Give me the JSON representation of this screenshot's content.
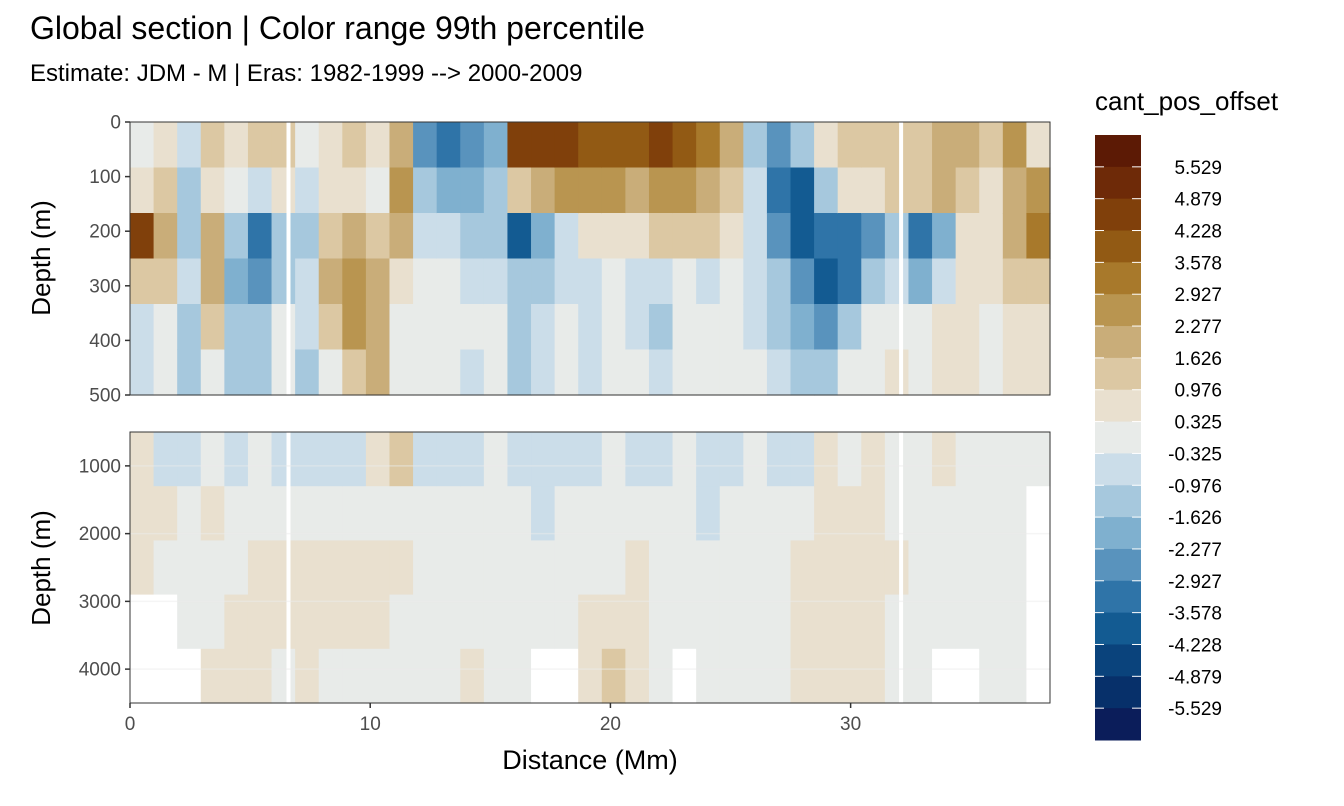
{
  "title": "Global section | Color range 99th percentile",
  "subtitle": "Estimate: JDM - M | Eras: 1982-1999 --> 2000-2009",
  "chart_data": {
    "type": "heatmap",
    "title": "Global section | Color range 99th percentile",
    "subtitle": "Estimate: JDM - M | Eras: 1982-1999 --> 2000-2009",
    "xlabel": "Distance (Mm)",
    "ylabel": "Depth (m)",
    "xlim": [
      0,
      38.3
    ],
    "x_ticks": [
      0,
      10,
      20,
      30
    ],
    "panels": [
      {
        "name": "upper",
        "ylim": [
          0,
          500
        ],
        "y_ticks": [
          0,
          100,
          200,
          300,
          400,
          500
        ]
      },
      {
        "name": "lower",
        "ylim": [
          500,
          4500
        ],
        "y_ticks": [
          1000,
          2000,
          3000,
          4000
        ]
      }
    ],
    "legend": {
      "title": "cant_pos_offset",
      "position": "right",
      "labels": [
        "5.529",
        "4.879",
        "4.228",
        "3.578",
        "2.927",
        "2.277",
        "1.626",
        "0.976",
        "0.325",
        "-0.325",
        "-0.976",
        "-1.626",
        "-2.277",
        "-2.927",
        "-3.578",
        "-4.228",
        "-4.879",
        "-5.529"
      ],
      "colors": [
        "#5c1a05",
        "#6e2a08",
        "#80400b",
        "#925a14",
        "#a8792b",
        "#b99550",
        "#c9ad79",
        "#dcc8a3",
        "#e9e0cf",
        "#e8ebe9",
        "#cbdde9",
        "#a6c8dd",
        "#7fb0cf",
        "#5993bd",
        "#2f74a8",
        "#135b92",
        "#0a437c",
        "#07306a",
        "#0b1d5a"
      ]
    },
    "upper_columns": [
      {
        "x": 0,
        "values": [
          -0.3,
          0.5,
          4.5,
          1.0,
          -0.5,
          -0.8
        ]
      },
      {
        "x": 1,
        "values": [
          0.9,
          1.4,
          2.0,
          1.0,
          0.3,
          -0.3
        ]
      },
      {
        "x": 2,
        "values": [
          -0.6,
          -1.5,
          -1.2,
          -0.8,
          -1.1,
          -1.3
        ]
      },
      {
        "x": 3,
        "values": [
          1.3,
          0.6,
          1.8,
          2.0,
          1.2,
          -0.3
        ]
      },
      {
        "x": 4,
        "values": [
          0.6,
          -0.3,
          -1.2,
          -1.7,
          -1.4,
          -1.2
        ]
      },
      {
        "x": 5,
        "values": [
          1.2,
          -0.8,
          -3.4,
          -2.6,
          -1.6,
          -1.4
        ]
      },
      {
        "x": 6,
        "values": [
          1.6,
          0.7,
          -1.5,
          -1.0,
          -0.3,
          -0.3
        ]
      },
      {
        "x": 7,
        "values": [
          -0.3,
          -0.8,
          -1.1,
          -0.7,
          -0.8,
          -1.0
        ]
      },
      {
        "x": 8,
        "values": [
          0.6,
          0.9,
          1.6,
          1.8,
          1.2,
          -0.3
        ]
      },
      {
        "x": 9,
        "values": [
          1.3,
          0.7,
          2.2,
          2.4,
          2.3,
          1.5
        ]
      },
      {
        "x": 10,
        "values": [
          0.4,
          0.2,
          1.0,
          1.9,
          2.2,
          2.0
        ]
      },
      {
        "x": 11,
        "values": [
          1.8,
          2.3,
          1.7,
          0.9,
          0.2,
          -0.3
        ]
      },
      {
        "x": 12,
        "values": [
          -2.4,
          -1.5,
          -0.6,
          -0.3,
          -0.3,
          -0.3
        ]
      },
      {
        "x": 13,
        "values": [
          -3.0,
          -1.9,
          -0.8,
          -0.3,
          -0.3,
          -0.3
        ]
      },
      {
        "x": 14,
        "values": [
          -2.7,
          -2.1,
          -1.0,
          -0.4,
          -0.3,
          -0.8
        ]
      },
      {
        "x": 15,
        "values": [
          -1.8,
          -1.6,
          -1.3,
          -0.5,
          -0.3,
          -0.3
        ]
      },
      {
        "x": 16,
        "values": [
          4.8,
          1.0,
          -3.7,
          -1.6,
          -1.3,
          -1.4
        ]
      },
      {
        "x": 17,
        "values": [
          4.3,
          2.0,
          -1.8,
          -1.0,
          -0.6,
          -0.8
        ]
      },
      {
        "x": 18,
        "values": [
          4.6,
          2.8,
          -0.6,
          -0.4,
          -0.3,
          -0.3
        ]
      },
      {
        "x": 19,
        "values": [
          4.0,
          2.6,
          0.4,
          -0.8,
          -0.9,
          -0.8
        ]
      },
      {
        "x": 20,
        "values": [
          4.2,
          2.3,
          0.8,
          -0.3,
          -0.3,
          -0.3
        ]
      },
      {
        "x": 21,
        "values": [
          3.9,
          1.9,
          0.5,
          -0.6,
          -0.4,
          -0.3
        ]
      },
      {
        "x": 22,
        "values": [
          4.3,
          2.4,
          1.1,
          -0.7,
          -1.1,
          -0.7
        ]
      },
      {
        "x": 23,
        "values": [
          3.8,
          2.7,
          1.0,
          0.3,
          -0.3,
          -0.3
        ]
      },
      {
        "x": 24,
        "values": [
          3.3,
          2.0,
          1.2,
          -0.4,
          -0.3,
          -0.3
        ]
      },
      {
        "x": 25,
        "values": [
          1.7,
          1.6,
          0.5,
          -0.3,
          -0.3,
          -0.3
        ]
      },
      {
        "x": 26,
        "values": [
          -1.1,
          -0.4,
          -0.7,
          -0.8,
          -0.5,
          -0.3
        ]
      },
      {
        "x": 27,
        "values": [
          -2.5,
          -3.0,
          -2.7,
          -1.6,
          -1.1,
          -0.8
        ]
      },
      {
        "x": 28,
        "values": [
          -1.5,
          -4.2,
          -3.8,
          -2.7,
          -2.1,
          -1.4
        ]
      },
      {
        "x": 29,
        "values": [
          0.8,
          -1.4,
          -3.5,
          -4.0,
          -2.6,
          -1.2
        ]
      },
      {
        "x": 30,
        "values": [
          1.2,
          0.6,
          -3.2,
          -3.3,
          -1.3,
          -0.3
        ]
      },
      {
        "x": 31,
        "values": [
          1.4,
          0.8,
          -2.6,
          -1.2,
          -0.3,
          -0.3
        ]
      },
      {
        "x": 32,
        "values": [
          1.0,
          1.2,
          -1.6,
          -0.4,
          0.3,
          0.5
        ]
      },
      {
        "x": 33,
        "values": [
          1.5,
          1.3,
          -3.0,
          -1.8,
          -0.3,
          0.3
        ]
      },
      {
        "x": 34,
        "values": [
          2.1,
          1.9,
          -1.8,
          -0.4,
          0.4,
          0.6
        ]
      },
      {
        "x": 35,
        "values": [
          2.0,
          1.4,
          0.4,
          0.5,
          0.7,
          0.6
        ]
      },
      {
        "x": 36,
        "values": [
          1.1,
          0.8,
          0.6,
          0.4,
          0.3,
          -0.3
        ]
      },
      {
        "x": 37,
        "values": [
          2.5,
          2.0,
          1.7,
          1.2,
          0.8,
          0.5
        ]
      },
      {
        "x": 38,
        "values": [
          0.6,
          2.8,
          3.4,
          1.3,
          0.7,
          0.4
        ]
      }
    ],
    "lower_columns": [
      {
        "x": 0,
        "values": [
          0.4,
          0.6,
          0.5,
          null,
          null
        ]
      },
      {
        "x": 1,
        "values": [
          -0.4,
          0.4,
          -0.2,
          null,
          null
        ]
      },
      {
        "x": 2,
        "values": [
          -0.4,
          -0.3,
          -0.2,
          -0.2,
          null
        ]
      },
      {
        "x": 3,
        "values": [
          0.3,
          0.4,
          -0.2,
          -0.2,
          0.4
        ]
      },
      {
        "x": 4,
        "values": [
          -0.4,
          -0.2,
          0.3,
          0.4,
          0.5
        ]
      },
      {
        "x": 5,
        "values": [
          0.3,
          -0.2,
          0.4,
          0.5,
          0.4
        ]
      },
      {
        "x": 6,
        "values": [
          -0.4,
          -0.2,
          0.5,
          0.6,
          0.3
        ]
      },
      {
        "x": 7,
        "values": [
          -0.4,
          -0.2,
          0.5,
          0.8,
          0.4
        ]
      },
      {
        "x": 8,
        "values": [
          -0.5,
          -0.3,
          0.4,
          0.6,
          0.3
        ]
      },
      {
        "x": 9,
        "values": [
          -0.4,
          -0.2,
          0.6,
          0.7,
          0.3
        ]
      },
      {
        "x": 10,
        "values": [
          0.4,
          -0.2,
          0.5,
          0.4,
          0.3
        ]
      },
      {
        "x": 11,
        "values": [
          1.0,
          -0.2,
          0.4,
          -0.2,
          -0.2
        ]
      },
      {
        "x": 12,
        "values": [
          -0.5,
          -0.3,
          -0.2,
          -0.2,
          -0.2
        ]
      },
      {
        "x": 13,
        "values": [
          -0.5,
          -0.3,
          -0.2,
          -0.2,
          0.3
        ]
      },
      {
        "x": 14,
        "values": [
          -0.4,
          -0.2,
          -0.2,
          -0.2,
          0.4
        ]
      },
      {
        "x": 15,
        "values": [
          -0.3,
          -0.2,
          -0.2,
          -0.2,
          -0.2
        ]
      },
      {
        "x": 16,
        "values": [
          -0.4,
          -0.3,
          -0.2,
          -0.2,
          -0.2
        ]
      },
      {
        "x": 17,
        "values": [
          -0.4,
          -0.4,
          -0.2,
          -0.2,
          null
        ]
      },
      {
        "x": 18,
        "values": [
          -0.4,
          -0.3,
          -0.2,
          -0.2,
          null
        ]
      },
      {
        "x": 19,
        "values": [
          -0.4,
          -0.2,
          -0.2,
          0.4,
          0.5
        ]
      },
      {
        "x": 20,
        "values": [
          -0.3,
          -0.2,
          0.3,
          0.8,
          1.0
        ]
      },
      {
        "x": 21,
        "values": [
          -0.4,
          -0.2,
          0.4,
          0.6,
          0.5
        ]
      },
      {
        "x": 22,
        "values": [
          -0.4,
          -0.2,
          -0.2,
          -0.2,
          0.3
        ]
      },
      {
        "x": 23,
        "values": [
          -0.3,
          -0.2,
          -0.2,
          -0.2,
          null
        ]
      },
      {
        "x": 24,
        "values": [
          -0.4,
          -0.5,
          -0.2,
          -0.2,
          0.3
        ]
      },
      {
        "x": 25,
        "values": [
          -0.4,
          -0.3,
          -0.2,
          -0.2,
          0.3
        ]
      },
      {
        "x": 26,
        "values": [
          -0.3,
          -0.2,
          -0.2,
          -0.2,
          -0.2
        ]
      },
      {
        "x": 27,
        "values": [
          -0.5,
          -0.3,
          -0.2,
          -0.2,
          -0.2
        ]
      },
      {
        "x": 28,
        "values": [
          -0.4,
          0.3,
          0.4,
          0.5,
          0.4
        ]
      },
      {
        "x": 29,
        "values": [
          0.4,
          0.4,
          0.5,
          0.6,
          0.5
        ]
      },
      {
        "x": 30,
        "values": [
          0.3,
          0.4,
          0.5,
          0.5,
          0.6
        ]
      },
      {
        "x": 31,
        "values": [
          0.4,
          0.4,
          0.4,
          0.4,
          0.5
        ]
      },
      {
        "x": 32,
        "values": [
          -0.2,
          0.3,
          0.4,
          -0.2,
          -0.2
        ]
      },
      {
        "x": 33,
        "values": [
          -0.3,
          -0.2,
          -0.2,
          -0.2,
          0.3
        ]
      },
      {
        "x": 34,
        "values": [
          0.5,
          -0.2,
          -0.2,
          -0.2,
          null
        ]
      },
      {
        "x": 35,
        "values": [
          -0.3,
          -0.2,
          -0.2,
          -0.2,
          null
        ]
      },
      {
        "x": 36,
        "values": [
          -0.2,
          -0.2,
          -0.2,
          -0.2,
          -0.2
        ]
      },
      {
        "x": 37,
        "values": [
          -0.3,
          -0.2,
          -0.2,
          -0.2,
          -0.2
        ]
      },
      {
        "x": 38,
        "values": [
          -0.2,
          null,
          null,
          null,
          null
        ]
      }
    ]
  }
}
